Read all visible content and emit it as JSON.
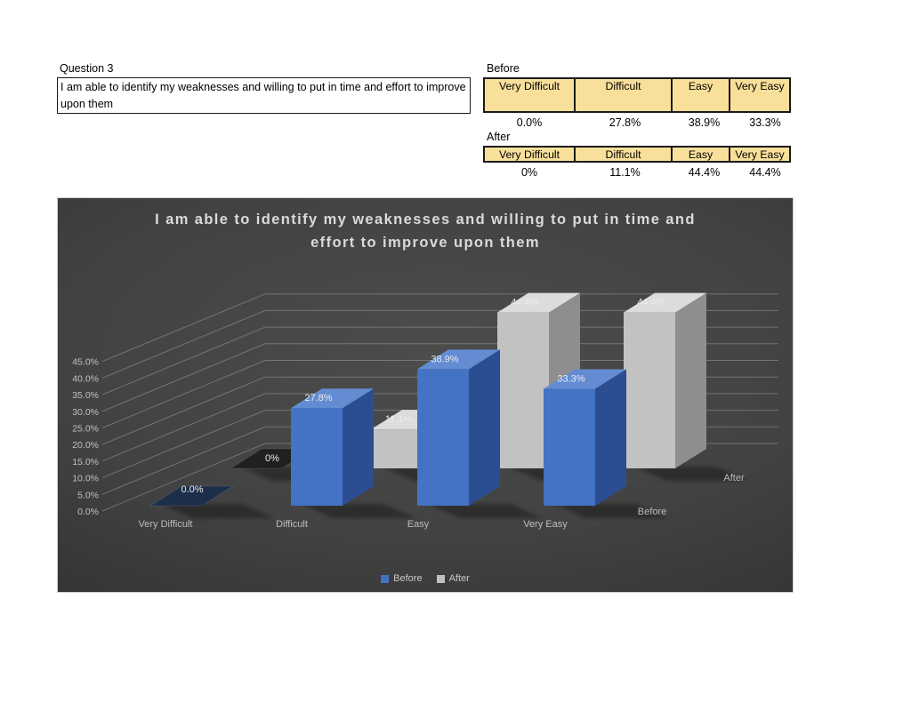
{
  "question": {
    "label": "Question 3",
    "text": "I am able to identify my weaknesses and willing to put in time and effort to improve upon them"
  },
  "tables": {
    "headers": [
      "Very Difficult",
      "Difficult",
      "Easy",
      "Very Easy"
    ],
    "before": {
      "label": "Before",
      "values": [
        "0.0%",
        "27.8%",
        "38.9%",
        "33.3%"
      ]
    },
    "after": {
      "label": "After",
      "values": [
        "0%",
        "11.1%",
        "44.4%",
        "44.4%"
      ]
    }
  },
  "chart_data": {
    "type": "bar",
    "projection": "3d",
    "title": "I am able to identify my weaknesses and willing to put in time and effort to improve upon them",
    "title_lines": [
      "I am able to identify my weaknesses and willing to put in time and",
      "effort to improve upon them"
    ],
    "categories": [
      "Very Difficult",
      "Difficult",
      "Easy",
      "Very Easy"
    ],
    "series": [
      {
        "name": "Before",
        "values": [
          0.0,
          27.8,
          38.9,
          33.3
        ],
        "labels": [
          "0.0%",
          "27.8%",
          "38.9%",
          "33.3%"
        ],
        "color": "#4472C4"
      },
      {
        "name": "After",
        "values": [
          0.0,
          11.1,
          44.4,
          44.4
        ],
        "labels": [
          "0%",
          "11.1%",
          "44.4%",
          "44.4%"
        ],
        "color": "#BFBFBF"
      }
    ],
    "yticks": [
      "0.0%",
      "5.0%",
      "10.0%",
      "15.0%",
      "20.0%",
      "25.0%",
      "30.0%",
      "35.0%",
      "40.0%",
      "45.0%"
    ],
    "ylim": [
      0,
      45
    ],
    "grid": true,
    "legend": [
      "Before",
      "After"
    ],
    "legend_position": "bottom",
    "background": "dark-gray-gradient"
  }
}
